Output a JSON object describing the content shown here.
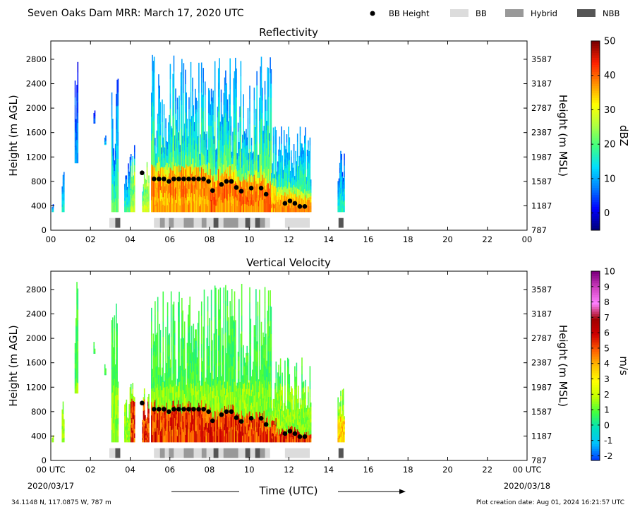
{
  "header": {
    "title": "Seven Oaks Dam MRR:  March 17, 2020 UTC",
    "legend": [
      {
        "label": "BB Height",
        "kind": "dot",
        "color": "#000000"
      },
      {
        "label": "BB",
        "kind": "swatch",
        "color": "#dcdcdc"
      },
      {
        "label": "Hybrid",
        "kind": "swatch",
        "color": "#999999"
      },
      {
        "label": "NBB",
        "kind": "swatch",
        "color": "#555555"
      }
    ]
  },
  "footer": {
    "location": "34.1148 N, 117.0875 W, 787 m",
    "creation": "Plot creation date: Aug 01, 2024 16:21:57 UTC",
    "xlabel": "Time (UTC)",
    "start_date": "2020/03/17",
    "end_date": "2020/03/18"
  },
  "chart_data": [
    {
      "type": "heatmap",
      "title": "Reflectivity",
      "ylabel": "Height (m AGL)",
      "ylabel_right": "Height (m MSL)",
      "xlim": [
        0,
        24
      ],
      "ylim": [
        0,
        3100
      ],
      "xticks": [
        "00",
        "02",
        "04",
        "06",
        "08",
        "10",
        "12",
        "14",
        "16",
        "18",
        "20",
        "22",
        "00"
      ],
      "yticks": [
        0,
        400,
        800,
        1200,
        1600,
        2000,
        2400,
        2800
      ],
      "yticks_right": [
        "787",
        "1187",
        "1587",
        "1987",
        "2387",
        "2787",
        "3187",
        "3587"
      ],
      "colorbar": {
        "label": "dBZ",
        "min": -5,
        "max": 50,
        "ticks": [
          "0",
          "10",
          "20",
          "30",
          "40",
          "50"
        ],
        "tick_values": [
          0,
          10,
          20,
          30,
          40,
          50
        ],
        "colors": [
          "#00007f",
          "#0000ff",
          "#0080ff",
          "#00e0ff",
          "#40ff80",
          "#b0ff40",
          "#ffff00",
          "#ff9000",
          "#ff2000",
          "#7f0000"
        ]
      }
    },
    {
      "type": "heatmap",
      "title": "Vertical Velocity",
      "ylabel": "Height (m AGL)",
      "ylabel_right": "Height (m MSL)",
      "xlim": [
        0,
        24
      ],
      "ylim": [
        0,
        3100
      ],
      "xticks": [
        "00 UTC",
        "02",
        "04",
        "06",
        "08",
        "10",
        "12",
        "14",
        "16",
        "18",
        "20",
        "22",
        "00 UTC"
      ],
      "yticks": [
        0,
        400,
        800,
        1200,
        1600,
        2000,
        2400,
        2800
      ],
      "yticks_right": [
        "787",
        "1187",
        "1587",
        "1987",
        "2387",
        "2787",
        "3187",
        "3587"
      ],
      "colorbar": {
        "label": "m/s",
        "min": -2.3,
        "max": 10,
        "ticks": [
          "-2",
          "-1",
          "0",
          "1",
          "2",
          "3",
          "4",
          "5",
          "6",
          "7",
          "8",
          "9",
          "10"
        ],
        "tick_values": [
          -2,
          -1,
          0,
          1,
          2,
          3,
          4,
          5,
          6,
          7,
          8,
          9,
          10
        ],
        "colors": [
          "#0040ff",
          "#00c0ff",
          "#00e0c0",
          "#40ff40",
          "#c0ff00",
          "#ffff00",
          "#ffc000",
          "#ff6000",
          "#d00000",
          "#a00000",
          "#ff80ff",
          "#d040c0",
          "#800080"
        ]
      }
    }
  ],
  "bb_heights": {
    "t": [
      4.6,
      5.2,
      5.45,
      5.7,
      5.95,
      6.2,
      6.45,
      6.7,
      6.95,
      7.2,
      7.45,
      7.7,
      7.95,
      8.15,
      8.6,
      8.85,
      9.1,
      9.35,
      9.6,
      10.1,
      10.6,
      10.85,
      11.8,
      12.05,
      12.3,
      12.55,
      12.8
    ],
    "h": [
      940,
      840,
      840,
      840,
      800,
      840,
      840,
      840,
      840,
      840,
      840,
      840,
      800,
      650,
      750,
      800,
      800,
      700,
      640,
      690,
      690,
      590,
      440,
      480,
      440,
      390,
      390
    ]
  },
  "bb_type": [
    {
      "t0": 2.95,
      "t1": 3.25,
      "type": "BB"
    },
    {
      "t0": 3.25,
      "t1": 3.5,
      "type": "NBB"
    },
    {
      "t0": 5.2,
      "t1": 5.5,
      "type": "BB"
    },
    {
      "t0": 5.5,
      "t1": 5.75,
      "type": "Hybrid"
    },
    {
      "t0": 5.75,
      "t1": 5.95,
      "type": "BB"
    },
    {
      "t0": 5.95,
      "t1": 6.2,
      "type": "Hybrid"
    },
    {
      "t0": 6.2,
      "t1": 6.7,
      "type": "BB"
    },
    {
      "t0": 6.7,
      "t1": 7.2,
      "type": "Hybrid"
    },
    {
      "t0": 7.2,
      "t1": 7.6,
      "type": "BB"
    },
    {
      "t0": 7.6,
      "t1": 7.85,
      "type": "Hybrid"
    },
    {
      "t0": 7.85,
      "t1": 8.2,
      "type": "BB"
    },
    {
      "t0": 8.2,
      "t1": 8.45,
      "type": "NBB"
    },
    {
      "t0": 8.45,
      "t1": 8.7,
      "type": "BB"
    },
    {
      "t0": 8.7,
      "t1": 9.45,
      "type": "Hybrid"
    },
    {
      "t0": 9.45,
      "t1": 9.8,
      "type": "BB"
    },
    {
      "t0": 9.8,
      "t1": 10.05,
      "type": "NBB"
    },
    {
      "t0": 10.05,
      "t1": 10.3,
      "type": "BB"
    },
    {
      "t0": 10.3,
      "t1": 10.55,
      "type": "NBB"
    },
    {
      "t0": 10.55,
      "t1": 10.8,
      "type": "Hybrid"
    },
    {
      "t0": 10.8,
      "t1": 11.05,
      "type": "BB"
    },
    {
      "t0": 11.8,
      "t1": 13.05,
      "type": "BB"
    },
    {
      "t0": 14.5,
      "t1": 14.75,
      "type": "NBB"
    }
  ]
}
